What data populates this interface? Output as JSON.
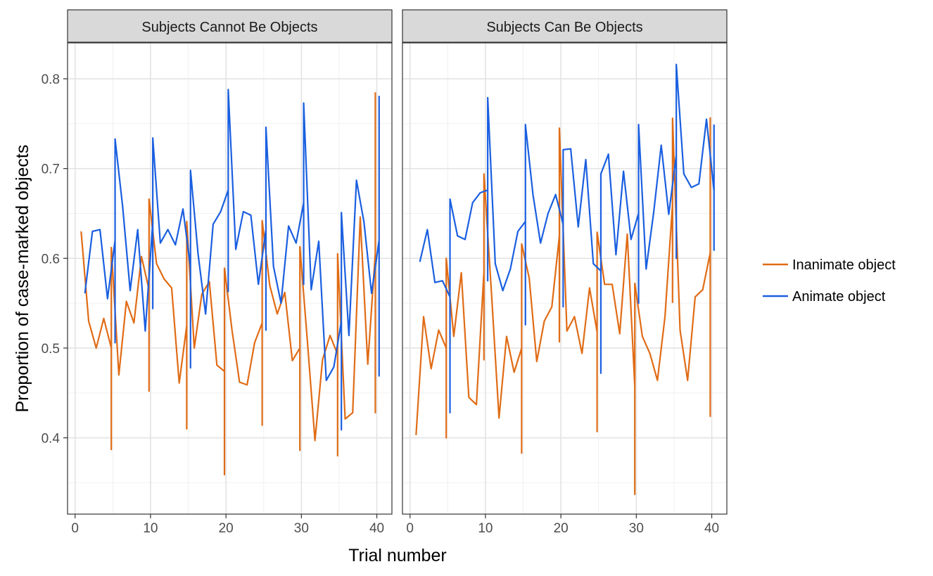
{
  "chart_data": {
    "type": "line",
    "facet_variable_labels": [
      "Subjects Cannot Be Objects",
      "Subjects Can Be Objects"
    ],
    "xlabel": "Trial number",
    "ylabel": "Proportion of case-marked objects",
    "xlim": [
      -1,
      42
    ],
    "ylim": [
      0.315,
      0.84
    ],
    "x_ticks": [
      0,
      10,
      20,
      30,
      40
    ],
    "y_ticks": [
      0.4,
      0.5,
      0.6,
      0.7,
      0.8
    ],
    "grid": true,
    "legend_position": "right",
    "series_colors": {
      "Inanimate object": "#e06c16",
      "Animate object": "#1a5fe0"
    },
    "series_order": [
      "Inanimate object",
      "Animate object"
    ],
    "panels": [
      {
        "strip_label": "Subjects Cannot Be Objects",
        "series": [
          {
            "name": "Inanimate object",
            "points": [
              [
                0.8,
                0.63
              ],
              [
                1.8,
                0.53
              ],
              [
                2.8,
                0.5
              ],
              [
                3.8,
                0.533
              ],
              [
                4.8,
                0.5
              ],
              [
                4.8,
                0.387
              ],
              [
                4.8,
                0.612
              ],
              [
                5.8,
                0.47
              ],
              [
                6.8,
                0.552
              ],
              [
                7.8,
                0.528
              ],
              [
                8.8,
                0.602
              ],
              [
                9.8,
                0.565
              ],
              [
                9.8,
                0.452
              ],
              [
                9.8,
                0.666
              ],
              [
                10.8,
                0.594
              ],
              [
                11.8,
                0.577
              ],
              [
                12.8,
                0.567
              ],
              [
                13.8,
                0.461
              ],
              [
                14.8,
                0.525
              ],
              [
                14.8,
                0.41
              ],
              [
                14.8,
                0.641
              ],
              [
                15.8,
                0.5
              ],
              [
                16.8,
                0.56
              ],
              [
                17.8,
                0.574
              ],
              [
                18.8,
                0.481
              ],
              [
                19.8,
                0.474
              ],
              [
                19.8,
                0.359
              ],
              [
                19.8,
                0.589
              ],
              [
                20.8,
                0.52
              ],
              [
                21.8,
                0.462
              ],
              [
                22.8,
                0.459
              ],
              [
                23.8,
                0.506
              ],
              [
                24.8,
                0.528
              ],
              [
                24.8,
                0.414
              ],
              [
                24.8,
                0.642
              ],
              [
                25.8,
                0.57
              ],
              [
                26.8,
                0.538
              ],
              [
                27.8,
                0.562
              ],
              [
                28.8,
                0.486
              ],
              [
                29.8,
                0.5
              ],
              [
                29.8,
                0.386
              ],
              [
                29.8,
                0.613
              ],
              [
                30.8,
                0.507
              ],
              [
                31.8,
                0.397
              ],
              [
                32.8,
                0.487
              ],
              [
                33.8,
                0.514
              ],
              [
                34.8,
                0.493
              ],
              [
                34.8,
                0.38
              ],
              [
                34.8,
                0.605
              ],
              [
                35.8,
                0.421
              ],
              [
                36.8,
                0.428
              ],
              [
                37.8,
                0.646
              ],
              [
                38.8,
                0.482
              ],
              [
                39.8,
                0.606
              ],
              [
                39.8,
                0.428
              ],
              [
                39.8,
                0.785
              ]
            ]
          },
          {
            "name": "Animate object",
            "points": [
              [
                1.3,
                0.561
              ],
              [
                2.3,
                0.63
              ],
              [
                3.3,
                0.632
              ],
              [
                4.3,
                0.555
              ],
              [
                5.3,
                0.62
              ],
              [
                5.3,
                0.506
              ],
              [
                5.3,
                0.733
              ],
              [
                6.3,
                0.658
              ],
              [
                7.3,
                0.564
              ],
              [
                8.3,
                0.632
              ],
              [
                9.3,
                0.519
              ],
              [
                10.3,
                0.64
              ],
              [
                10.3,
                0.544
              ],
              [
                10.3,
                0.734
              ],
              [
                11.3,
                0.617
              ],
              [
                12.3,
                0.632
              ],
              [
                13.3,
                0.615
              ],
              [
                14.3,
                0.655
              ],
              [
                15.3,
                0.59
              ],
              [
                15.3,
                0.478
              ],
              [
                15.3,
                0.698
              ],
              [
                16.3,
                0.605
              ],
              [
                17.3,
                0.538
              ],
              [
                18.3,
                0.638
              ],
              [
                19.3,
                0.652
              ],
              [
                20.3,
                0.676
              ],
              [
                20.3,
                0.563
              ],
              [
                20.3,
                0.788
              ],
              [
                21.3,
                0.61
              ],
              [
                22.3,
                0.652
              ],
              [
                23.3,
                0.648
              ],
              [
                24.3,
                0.571
              ],
              [
                25.3,
                0.632
              ],
              [
                25.3,
                0.52
              ],
              [
                25.3,
                0.746
              ],
              [
                26.3,
                0.591
              ],
              [
                27.3,
                0.55
              ],
              [
                28.3,
                0.636
              ],
              [
                29.3,
                0.617
              ],
              [
                30.3,
                0.662
              ],
              [
                30.3,
                0.571
              ],
              [
                30.3,
                0.773
              ],
              [
                31.3,
                0.565
              ],
              [
                32.3,
                0.619
              ],
              [
                33.3,
                0.464
              ],
              [
                34.3,
                0.479
              ],
              [
                35.3,
                0.53
              ],
              [
                35.3,
                0.409
              ],
              [
                35.3,
                0.651
              ],
              [
                36.3,
                0.514
              ],
              [
                37.3,
                0.687
              ],
              [
                38.3,
                0.64
              ],
              [
                39.3,
                0.561
              ],
              [
                40.3,
                0.62
              ],
              [
                40.3,
                0.469
              ],
              [
                40.3,
                0.781
              ]
            ]
          }
        ]
      },
      {
        "strip_label": "Subjects Can Be Objects",
        "series": [
          {
            "name": "Inanimate object",
            "points": [
              [
                0.8,
                0.403
              ],
              [
                1.8,
                0.535
              ],
              [
                2.8,
                0.477
              ],
              [
                3.8,
                0.52
              ],
              [
                4.8,
                0.5
              ],
              [
                4.8,
                0.4
              ],
              [
                4.8,
                0.6
              ],
              [
                5.8,
                0.513
              ],
              [
                6.8,
                0.584
              ],
              [
                7.8,
                0.445
              ],
              [
                8.8,
                0.437
              ],
              [
                9.8,
                0.585
              ],
              [
                9.8,
                0.487
              ],
              [
                9.8,
                0.694
              ],
              [
                10.8,
                0.561
              ],
              [
                11.8,
                0.422
              ],
              [
                12.8,
                0.513
              ],
              [
                13.8,
                0.473
              ],
              [
                14.8,
                0.5
              ],
              [
                14.8,
                0.383
              ],
              [
                14.8,
                0.616
              ],
              [
                15.8,
                0.578
              ],
              [
                16.8,
                0.485
              ],
              [
                17.8,
                0.53
              ],
              [
                18.8,
                0.546
              ],
              [
                19.8,
                0.625
              ],
              [
                19.8,
                0.507
              ],
              [
                19.8,
                0.745
              ],
              [
                20.8,
                0.519
              ],
              [
                21.8,
                0.535
              ],
              [
                22.8,
                0.494
              ],
              [
                23.8,
                0.567
              ],
              [
                24.8,
                0.518
              ],
              [
                24.8,
                0.407
              ],
              [
                24.8,
                0.629
              ],
              [
                25.8,
                0.571
              ],
              [
                26.8,
                0.571
              ],
              [
                27.8,
                0.516
              ],
              [
                28.8,
                0.627
              ],
              [
                29.8,
                0.457
              ],
              [
                29.8,
                0.337
              ],
              [
                29.8,
                0.572
              ],
              [
                30.8,
                0.513
              ],
              [
                31.8,
                0.494
              ],
              [
                32.8,
                0.464
              ],
              [
                33.8,
                0.535
              ],
              [
                34.8,
                0.66
              ],
              [
                34.8,
                0.551
              ],
              [
                34.8,
                0.756
              ],
              [
                35.8,
                0.52
              ],
              [
                36.8,
                0.464
              ],
              [
                37.8,
                0.557
              ],
              [
                38.8,
                0.565
              ],
              [
                39.8,
                0.606
              ],
              [
                39.8,
                0.424
              ],
              [
                39.8,
                0.757
              ]
            ]
          },
          {
            "name": "Animate object",
            "points": [
              [
                1.3,
                0.596
              ],
              [
                2.3,
                0.632
              ],
              [
                3.3,
                0.573
              ],
              [
                4.3,
                0.575
              ],
              [
                5.3,
                0.557
              ],
              [
                5.3,
                0.428
              ],
              [
                5.3,
                0.666
              ],
              [
                6.3,
                0.625
              ],
              [
                7.3,
                0.621
              ],
              [
                8.3,
                0.662
              ],
              [
                9.3,
                0.673
              ],
              [
                10.3,
                0.676
              ],
              [
                10.3,
                0.575
              ],
              [
                10.3,
                0.779
              ],
              [
                11.3,
                0.594
              ],
              [
                12.3,
                0.564
              ],
              [
                13.3,
                0.588
              ],
              [
                14.3,
                0.63
              ],
              [
                15.3,
                0.641
              ],
              [
                15.3,
                0.526
              ],
              [
                15.3,
                0.749
              ],
              [
                16.3,
                0.671
              ],
              [
                17.3,
                0.617
              ],
              [
                18.3,
                0.65
              ],
              [
                19.3,
                0.671
              ],
              [
                20.3,
                0.638
              ],
              [
                20.3,
                0.546
              ],
              [
                20.3,
                0.721
              ],
              [
                21.3,
                0.722
              ],
              [
                22.3,
                0.635
              ],
              [
                23.3,
                0.71
              ],
              [
                24.3,
                0.594
              ],
              [
                25.3,
                0.586
              ],
              [
                25.3,
                0.472
              ],
              [
                25.3,
                0.694
              ],
              [
                26.3,
                0.716
              ],
              [
                27.3,
                0.604
              ],
              [
                28.3,
                0.697
              ],
              [
                29.3,
                0.621
              ],
              [
                30.3,
                0.65
              ],
              [
                30.3,
                0.55
              ],
              [
                30.3,
                0.749
              ],
              [
                31.3,
                0.588
              ],
              [
                32.3,
                0.651
              ],
              [
                33.3,
                0.726
              ],
              [
                34.3,
                0.649
              ],
              [
                35.3,
                0.715
              ],
              [
                35.3,
                0.6
              ],
              [
                35.3,
                0.816
              ],
              [
                36.3,
                0.694
              ],
              [
                37.3,
                0.679
              ],
              [
                38.3,
                0.683
              ],
              [
                39.3,
                0.755
              ],
              [
                40.3,
                0.675
              ],
              [
                40.3,
                0.609
              ],
              [
                40.3,
                0.749
              ]
            ]
          }
        ]
      }
    ]
  }
}
